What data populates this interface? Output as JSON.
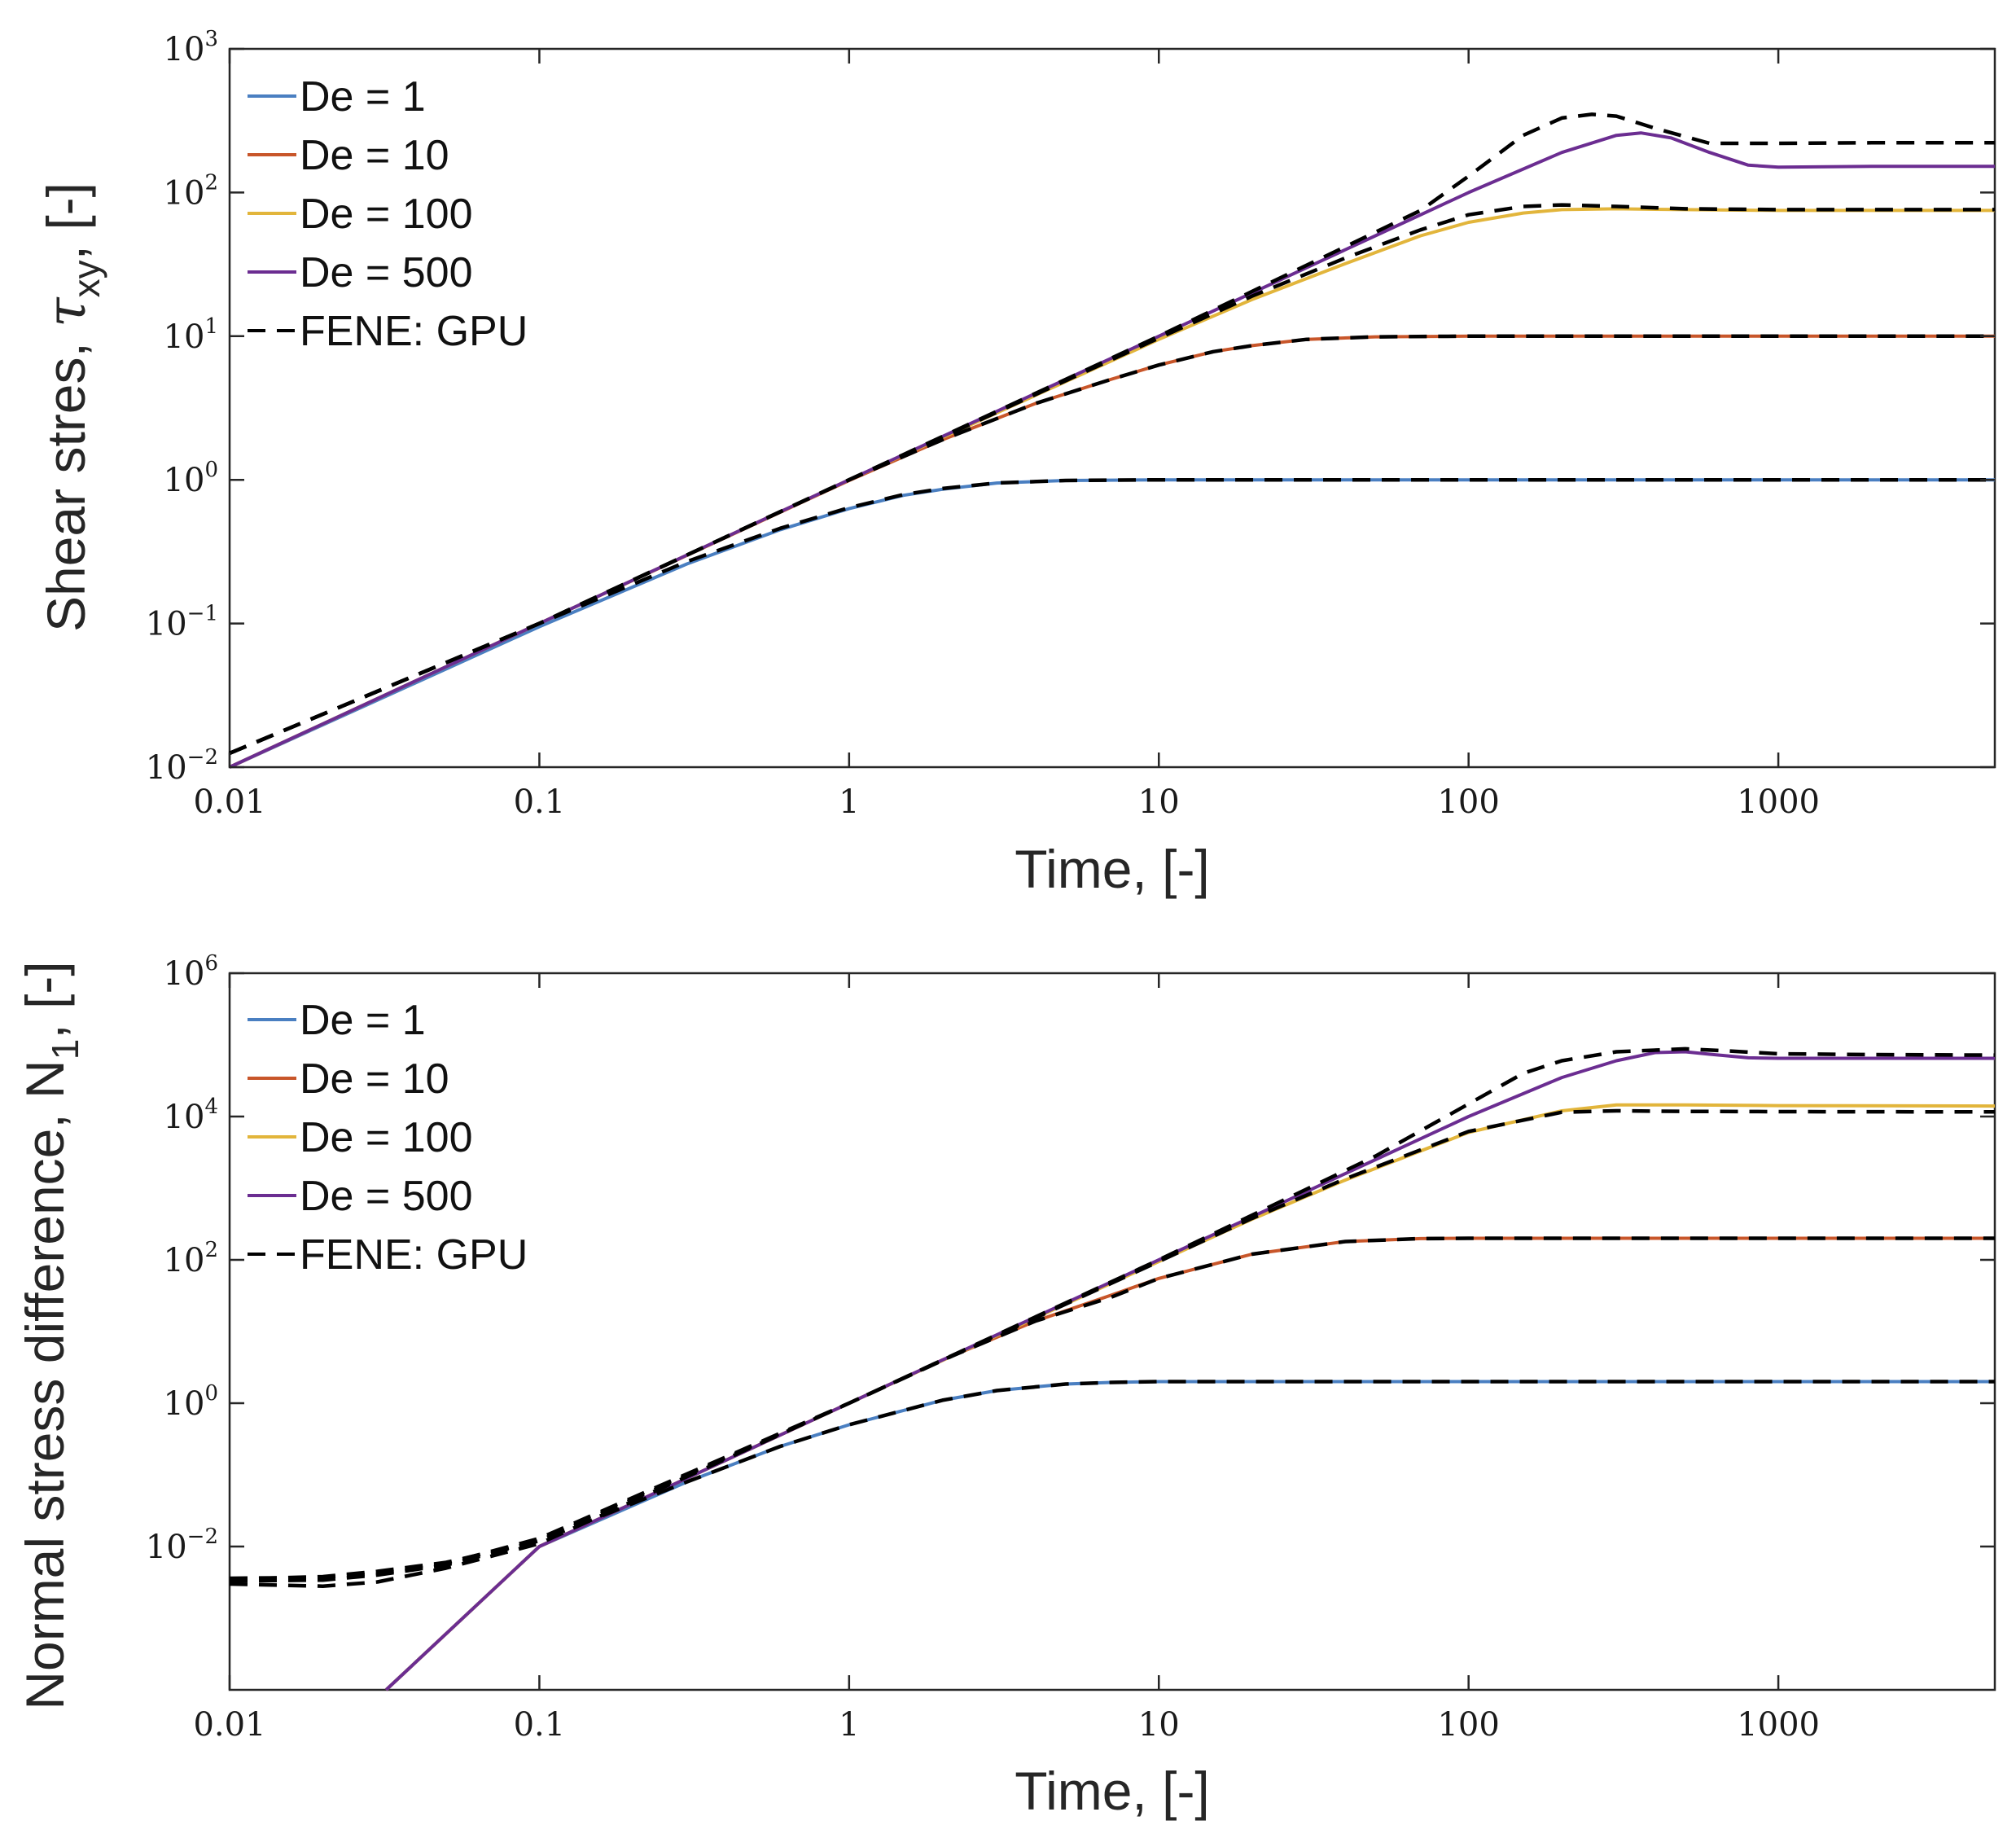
{
  "chart_data": [
    {
      "type": "line",
      "xscale": "log",
      "yscale": "log",
      "xlabel": "Time, [-]",
      "ylabel_parts": [
        "Shear stres, ",
        "τ",
        "xy",
        ", [-]"
      ],
      "xlim": [
        0.01,
        5000
      ],
      "ylim": [
        0.01,
        1000
      ],
      "xticks": [
        0.01,
        0.1,
        1,
        10,
        100,
        1000
      ],
      "xtick_labels": [
        "0.01",
        "0.1",
        "1",
        "10",
        "100",
        "1000"
      ],
      "ytick_exponents": [
        -2,
        -1,
        0,
        1,
        2,
        3
      ],
      "ytick_labels": [
        "10",
        "10",
        "10",
        "10",
        "10",
        "10"
      ],
      "ytick_sup_labels": [
        "−2",
        "−1",
        "0",
        "1",
        "2",
        "3"
      ],
      "legend": [
        "De = 1",
        "De = 10",
        "De = 100",
        "De = 500",
        "FENE: GPU"
      ],
      "legend_location": "top-left",
      "series": [
        {
          "name": "De = 1",
          "color": "#4a7fc1",
          "dashed": false,
          "x": [
            0.01,
            0.1,
            0.3,
            0.6,
            1,
            1.5,
            2,
            3,
            5,
            10,
            100,
            1000,
            5000
          ],
          "y": [
            0.01,
            0.095,
            0.26,
            0.45,
            0.63,
            0.78,
            0.86,
            0.95,
            0.99,
            1.0,
            1.0,
            1.0,
            1.0
          ]
        },
        {
          "name": "De = 10",
          "color": "#c8562a",
          "dashed": false,
          "x": [
            0.01,
            0.1,
            1,
            2,
            4,
            7,
            10,
            15,
            20,
            30,
            50,
            100,
            1000,
            5000
          ],
          "y": [
            0.01,
            0.1,
            0.99,
            1.9,
            3.4,
            5.0,
            6.3,
            7.8,
            8.6,
            9.5,
            9.9,
            10.0,
            10.0,
            10.0
          ]
        },
        {
          "name": "De = 100",
          "color": "#e2b53b",
          "dashed": false,
          "x": [
            0.01,
            0.1,
            1,
            10,
            20,
            40,
            70,
            100,
            150,
            200,
            300,
            500,
            1000,
            5000
          ],
          "y": [
            0.01,
            0.1,
            1,
            9.5,
            18,
            32,
            50,
            62,
            72,
            76,
            77,
            76,
            75,
            75
          ]
        },
        {
          "name": "De = 500",
          "color": "#6b2d91",
          "dashed": false,
          "x": [
            0.01,
            0.1,
            1,
            10,
            50,
            100,
            200,
            300,
            360,
            450,
            600,
            800,
            1000,
            2000,
            5000
          ],
          "y": [
            0.01,
            0.1,
            1,
            10,
            50,
            100,
            190,
            250,
            260,
            240,
            190,
            155,
            150,
            152,
            152
          ]
        },
        {
          "name": "FENE: GPU",
          "color": "#000000",
          "dashed": true,
          "x": [
            0.01,
            0.1,
            0.3,
            0.6,
            1,
            1.5,
            2,
            3,
            5,
            10,
            100,
            1000,
            5000
          ],
          "y": [
            0.0125,
            0.1,
            0.27,
            0.46,
            0.64,
            0.79,
            0.87,
            0.95,
            0.99,
            1.0,
            1.0,
            1.0,
            1.0
          ]
        },
        {
          "name": "FENE: GPU",
          "color": "#000000",
          "dashed": true,
          "x": [
            0.01,
            0.1,
            1,
            2,
            4,
            7,
            10,
            15,
            20,
            30,
            50,
            100,
            1000,
            5000
          ],
          "y": [
            0.0125,
            0.1,
            1,
            1.9,
            3.4,
            5.0,
            6.3,
            7.8,
            8.6,
            9.5,
            9.9,
            10.0,
            10.0,
            10.0
          ]
        },
        {
          "name": "FENE: GPU",
          "color": "#000000",
          "dashed": true,
          "x": [
            0.01,
            0.1,
            1,
            10,
            20,
            40,
            70,
            100,
            150,
            200,
            300,
            500,
            1000,
            5000
          ],
          "y": [
            0.0125,
            0.1,
            1,
            9.7,
            19,
            35,
            55,
            70,
            80,
            82,
            80,
            77,
            76,
            76
          ]
        },
        {
          "name": "FENE: GPU",
          "color": "#000000",
          "dashed": true,
          "x": [
            0.01,
            0.1,
            1,
            10,
            40,
            70,
            100,
            150,
            200,
            250,
            300,
            400,
            600,
            800,
            1000,
            2000,
            5000
          ],
          "y": [
            0.0125,
            0.1,
            1,
            10,
            42,
            75,
            130,
            250,
            330,
            350,
            340,
            280,
            220,
            220,
            220,
            222,
            222
          ]
        }
      ]
    },
    {
      "type": "line",
      "xscale": "log",
      "yscale": "log",
      "xlabel": "Time, [-]",
      "ylabel_parts": [
        "Normal stress difference, N",
        "1",
        ", [-]"
      ],
      "xlim": [
        0.01,
        5000
      ],
      "ylim": [
        0.0001,
        1000000
      ],
      "xticks": [
        0.01,
        0.1,
        1,
        10,
        100,
        1000
      ],
      "xtick_labels": [
        "0.01",
        "0.1",
        "1",
        "10",
        "100",
        "1000"
      ],
      "ytick_exponents": [
        -2,
        0,
        2,
        4,
        6
      ],
      "ytick_labels": [
        "10",
        "10",
        "10",
        "10",
        "10"
      ],
      "ytick_sup_labels": [
        "−2",
        "0",
        "2",
        "4",
        "6"
      ],
      "legend": [
        "De = 1",
        "De = 10",
        "De = 100",
        "De = 500",
        "FENE: GPU"
      ],
      "legend_location": "top-left",
      "series": [
        {
          "name": "De = 1",
          "color": "#4a7fc1",
          "dashed": false,
          "x": [
            0.032,
            0.1,
            0.3,
            0.6,
            1,
            2,
            3,
            5,
            7,
            10,
            100,
            1000,
            5000
          ],
          "y": [
            0.0001,
            0.01,
            0.08,
            0.25,
            0.5,
            1.1,
            1.5,
            1.85,
            1.95,
            2.0,
            2.0,
            2.0,
            2.0
          ]
        },
        {
          "name": "De = 10",
          "color": "#c8562a",
          "dashed": false,
          "x": [
            0.032,
            0.1,
            1,
            2,
            4,
            7,
            10,
            20,
            40,
            70,
            100,
            1000,
            5000
          ],
          "y": [
            0.0001,
            0.01,
            1,
            4,
            14,
            32,
            55,
            120,
            180,
            198,
            200,
            200,
            200
          ]
        },
        {
          "name": "De = 100",
          "color": "#e2b53b",
          "dashed": false,
          "x": [
            0.032,
            0.1,
            1,
            10,
            20,
            40,
            100,
            200,
            300,
            500,
            1000,
            5000
          ],
          "y": [
            0.0001,
            0.01,
            1,
            95,
            370,
            1300,
            6000,
            12000,
            14500,
            14500,
            14200,
            14000
          ]
        },
        {
          "name": "De = 500",
          "color": "#6b2d91",
          "dashed": false,
          "x": [
            0.032,
            0.1,
            1,
            10,
            50,
            100,
            200,
            300,
            400,
            500,
            600,
            800,
            1000,
            2000,
            5000
          ],
          "y": [
            0.0001,
            0.01,
            1,
            100,
            2500,
            10000,
            35000,
            60000,
            78000,
            80000,
            74000,
            66000,
            65000,
            65000,
            65000
          ]
        },
        {
          "name": "FENE: GPU",
          "color": "#000000",
          "dashed": true,
          "x": [
            0.01,
            0.02,
            0.03,
            0.05,
            0.1,
            0.3,
            0.6,
            1,
            2,
            3,
            5,
            7,
            10,
            100,
            1000,
            5000
          ],
          "y": [
            0.0035,
            0.0038,
            0.0045,
            0.006,
            0.012,
            0.08,
            0.25,
            0.5,
            1.1,
            1.5,
            1.85,
            1.95,
            2.0,
            2.0,
            2.0,
            2.0
          ]
        },
        {
          "name": "FENE: GPU",
          "color": "#000000",
          "dashed": true,
          "x": [
            0.01,
            0.02,
            0.03,
            0.05,
            0.1,
            1,
            2,
            4,
            7,
            10,
            20,
            40,
            70,
            100,
            1000,
            5000
          ],
          "y": [
            0.003,
            0.0028,
            0.0032,
            0.005,
            0.011,
            1,
            4,
            14,
            30,
            55,
            120,
            180,
            198,
            200,
            200,
            200
          ]
        },
        {
          "name": "FENE: GPU",
          "color": "#000000",
          "dashed": true,
          "x": [
            0.01,
            0.02,
            0.03,
            0.05,
            0.1,
            1,
            10,
            20,
            40,
            100,
            200,
            300,
            500,
            1000,
            5000
          ],
          "y": [
            0.0033,
            0.0034,
            0.004,
            0.0055,
            0.012,
            1,
            95,
            380,
            1350,
            6200,
            11500,
            12000,
            11800,
            11700,
            11600
          ]
        },
        {
          "name": "FENE: GPU",
          "color": "#000000",
          "dashed": true,
          "x": [
            0.01,
            0.02,
            0.03,
            0.05,
            0.1,
            1,
            10,
            50,
            100,
            150,
            200,
            300,
            500,
            700,
            1000,
            2000,
            5000
          ],
          "y": [
            0.0036,
            0.0037,
            0.0042,
            0.0058,
            0.013,
            1,
            100,
            2800,
            15000,
            40000,
            60000,
            80000,
            88000,
            82000,
            75000,
            73000,
            72000
          ]
        }
      ]
    }
  ]
}
